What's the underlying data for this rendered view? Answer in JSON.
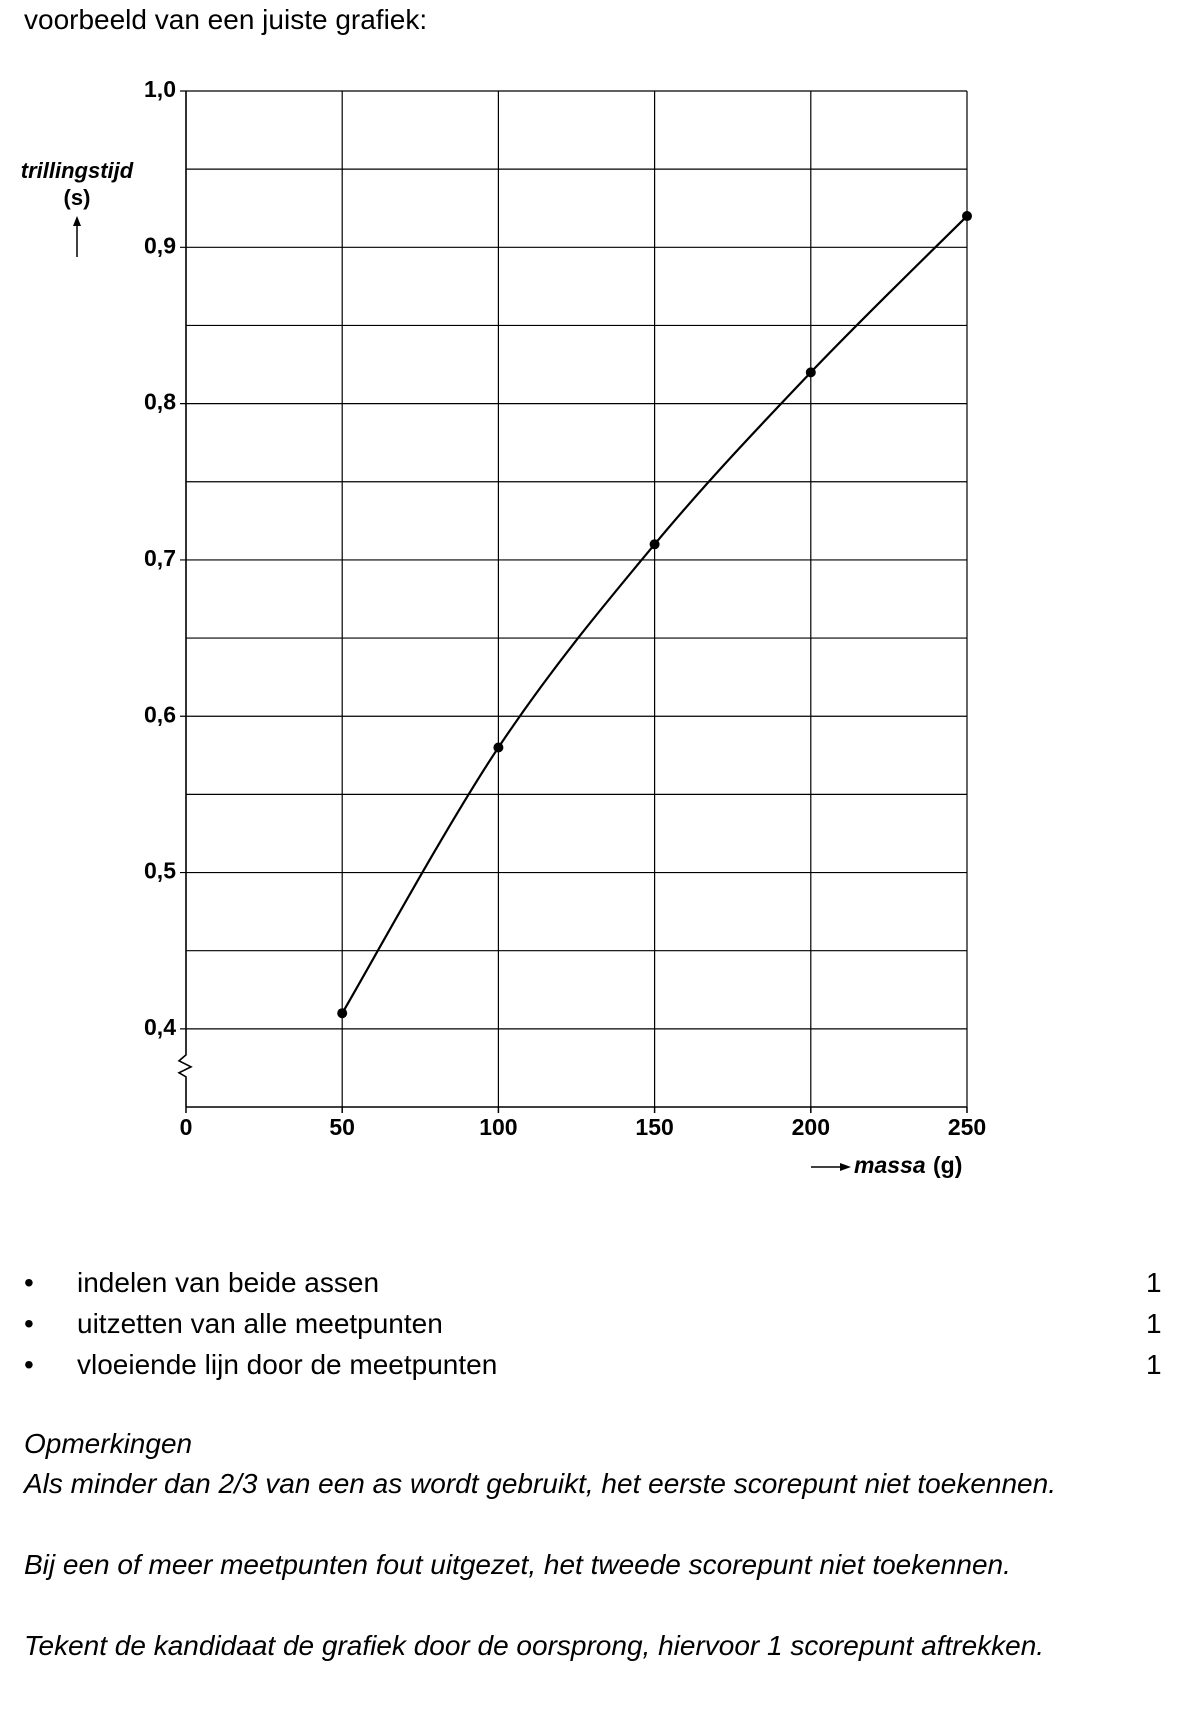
{
  "header": {
    "title": "voorbeeld van een juiste grafiek:"
  },
  "chart_data": {
    "type": "line",
    "y_label": "trillingstijd",
    "y_unit": "(s)",
    "x_label": "massa",
    "x_unit": "(g)",
    "x": [
      50,
      100,
      150,
      200,
      250
    ],
    "series": [
      {
        "color": "#000000",
        "values": [
          0.41,
          0.58,
          0.71,
          0.82,
          0.92
        ]
      }
    ],
    "xlim": [
      0,
      250
    ],
    "ylim": [
      0.35,
      1.0
    ],
    "xticks": [
      0,
      50,
      100,
      150,
      200,
      250
    ],
    "yticks": [
      {
        "value": 0.4,
        "label": "0,4"
      },
      {
        "value": 0.5,
        "label": "0,5"
      },
      {
        "value": 0.6,
        "label": "0,6"
      },
      {
        "value": 0.7,
        "label": "0,7"
      },
      {
        "value": 0.8,
        "label": "0,8"
      },
      {
        "value": 0.9,
        "label": "0,9"
      },
      {
        "value": 1.0,
        "label": "1,0"
      }
    ],
    "minor_yticks": [
      0.45,
      0.55,
      0.65,
      0.75,
      0.85,
      0.95
    ],
    "grid": true
  },
  "criteria": [
    {
      "text": "indelen van beide assen",
      "score": 1
    },
    {
      "text": "uitzetten van alle meetpunten",
      "score": 1
    },
    {
      "text": "vloeiende lijn door de meetpunten",
      "score": 1
    }
  ],
  "remarks": {
    "title": "Opmerkingen",
    "items": [
      "Als minder dan 2/3 van een as wordt gebruikt, het eerste scorepunt niet toekennen.",
      "Bij een of meer meetpunten fout uitgezet, het tweede scorepunt niet toekennen.",
      "Tekent de kandidaat de grafiek door de oorsprong, hiervoor 1 scorepunt aftrekken."
    ]
  }
}
